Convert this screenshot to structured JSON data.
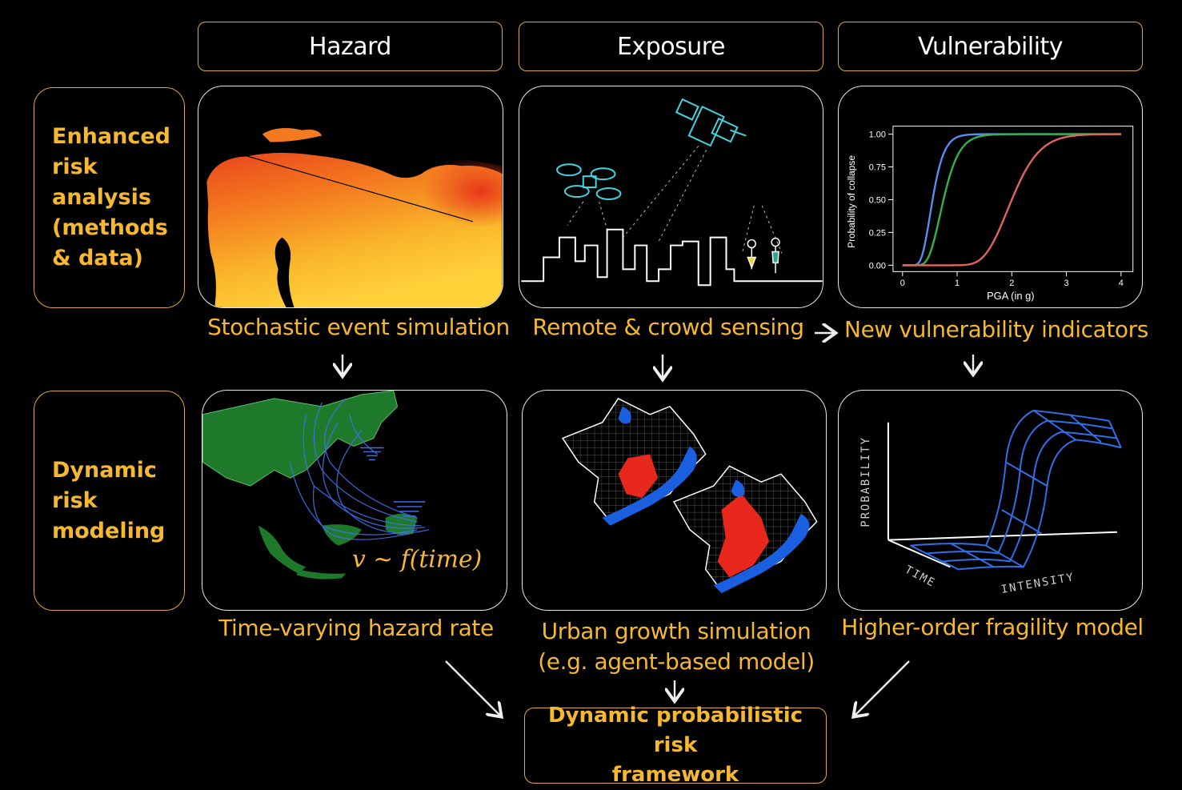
{
  "columns": {
    "hazard": "Hazard",
    "exposure": "Exposure",
    "vulnerability": "Vulnerability"
  },
  "rows": {
    "enhanced": "Enhanced\nrisk\nanalysis\n(methods\n& data)",
    "dynamic": "Dynamic\nrisk\nmodeling"
  },
  "captions": {
    "stochastic": "Stochastic event simulation",
    "remote": "Remote & crowd sensing",
    "vuln_indicators": "New vulnerability indicators",
    "time_varying": "Time-varying hazard rate",
    "urban_line1": "Urban growth simulation",
    "urban_line2": "(e.g. agent-based model)",
    "fragility": "Higher-order fragility model"
  },
  "formula": "v ~ f(time)",
  "final": {
    "line1": "Dynamic probabilistic risk",
    "line2": "framework"
  },
  "fragility_chart": {
    "ylabel": "Probability of collapse",
    "xlabel": "PGA (in g)",
    "yticks": [
      "0.00",
      "0.25",
      "0.50",
      "0.75",
      "1.00"
    ],
    "xticks": [
      "0",
      "1",
      "2",
      "3",
      "4"
    ]
  },
  "sketch3d": {
    "ylabel": "PROBABILITY",
    "xlabel1": "TIME",
    "xlabel2": "INTENSITY"
  },
  "chart_data": {
    "type": "line",
    "xlabel": "PGA (in g)",
    "ylabel": "Probability of collapse",
    "xlim": [
      0,
      4
    ],
    "ylim": [
      0,
      1
    ],
    "series": [
      {
        "color": "#5b8def",
        "median": 0.55,
        "beta": 0.3
      },
      {
        "color": "#34b34a",
        "median": 0.75,
        "beta": 0.3
      },
      {
        "color": "#e0655f",
        "median": 2.0,
        "beta": 0.2
      }
    ]
  },
  "colors": {
    "accent": "#f5b82e",
    "border": "#e0a93a",
    "panel_border": "#e8e8e8"
  }
}
